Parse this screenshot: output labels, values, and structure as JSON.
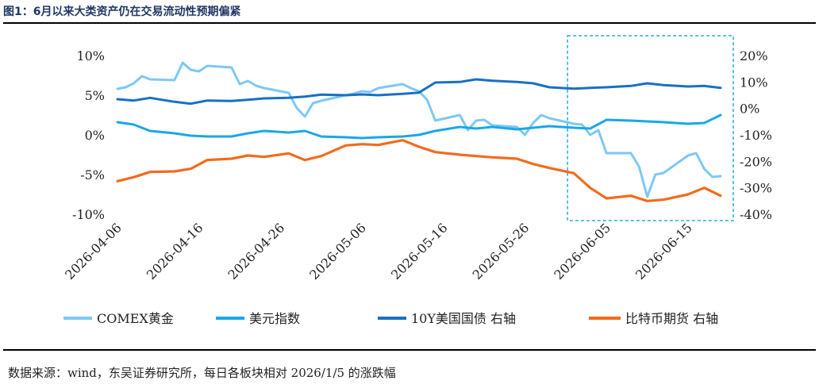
{
  "figure_title": "图1：6月以来大类资产仍在交易流动性预期偏紧",
  "source_note": "数据来源：wind，东吴证券研究所，每日各板块相对 2026/1/5 的涨跌幅",
  "colors": {
    "gold": "#7ec8f5",
    "usd": "#1aa7e8",
    "us10y": "#1a6fc4",
    "btc": "#f26b1d",
    "highlight_box": "#29a8e0"
  },
  "chart_data": {
    "type": "line",
    "x_tick_labels": [
      "2026-04-06",
      "2026-04-16",
      "2026-04-26",
      "2026-05-06",
      "2026-05-16",
      "2026-05-26",
      "2026-06-05",
      "2026-06-15"
    ],
    "x_range": [
      "2026-04-06",
      "2026-06-19"
    ],
    "left_axis": {
      "ticks": [
        "10%",
        "5%",
        "0%",
        "-5%",
        "-10%"
      ],
      "ylim": [
        -10,
        10
      ]
    },
    "right_axis": {
      "ticks": [
        "20%",
        "10%",
        "0%",
        "-10%",
        "-20%",
        "-30%",
        "-40%"
      ],
      "ylim": [
        -40,
        20
      ]
    },
    "highlight_range": [
      "2026-06-01",
      "2026-06-19"
    ],
    "grid": false,
    "legend_position": "bottom",
    "series": [
      {
        "name": "COMEX黄金",
        "axis": "left",
        "color": "gold",
        "x": [
          "2026-04-06",
          "2026-04-07",
          "2026-04-08",
          "2026-04-09",
          "2026-04-10",
          "2026-04-13",
          "2026-04-14",
          "2026-04-15",
          "2026-04-16",
          "2026-04-17",
          "2026-04-20",
          "2026-04-21",
          "2026-04-22",
          "2026-04-23",
          "2026-04-24",
          "2026-04-27",
          "2026-04-28",
          "2026-04-29",
          "2026-04-30",
          "2026-05-01",
          "2026-05-04",
          "2026-05-05",
          "2026-05-06",
          "2026-05-07",
          "2026-05-08",
          "2026-05-11",
          "2026-05-12",
          "2026-05-13",
          "2026-05-14",
          "2026-05-15",
          "2026-05-18",
          "2026-05-19",
          "2026-05-20",
          "2026-05-21",
          "2026-05-22",
          "2026-05-25",
          "2026-05-26",
          "2026-05-27",
          "2026-05-28",
          "2026-05-29",
          "2026-06-01",
          "2026-06-02",
          "2026-06-03",
          "2026-06-04",
          "2026-06-05",
          "2026-06-08",
          "2026-06-09",
          "2026-06-10",
          "2026-06-11",
          "2026-06-12",
          "2026-06-15",
          "2026-06-16",
          "2026-06-17",
          "2026-06-18",
          "2026-06-19"
        ],
        "y": [
          5.8,
          6.0,
          6.5,
          7.4,
          7.0,
          6.9,
          9.1,
          8.2,
          8.0,
          8.7,
          8.5,
          6.4,
          6.8,
          6.2,
          5.9,
          5.3,
          3.4,
          2.3,
          4.0,
          4.3,
          5.0,
          5.2,
          5.5,
          5.4,
          5.9,
          6.4,
          5.9,
          5.5,
          4.4,
          1.8,
          2.5,
          0.6,
          1.8,
          1.9,
          1.2,
          1.0,
          0.0,
          1.5,
          2.5,
          2.1,
          1.4,
          1.3,
          0.0,
          0.6,
          -2.3,
          -2.3,
          -4.0,
          -7.8,
          -5.0,
          -4.8,
          -2.6,
          -2.3,
          -4.3,
          -5.3,
          -5.2
        ]
      },
      {
        "name": "美元指数",
        "axis": "left",
        "color": "usd",
        "x": [
          "2026-04-06",
          "2026-04-08",
          "2026-04-10",
          "2026-04-13",
          "2026-04-15",
          "2026-04-17",
          "2026-04-20",
          "2026-04-22",
          "2026-04-24",
          "2026-04-27",
          "2026-04-29",
          "2026-05-01",
          "2026-05-04",
          "2026-05-06",
          "2026-05-08",
          "2026-05-11",
          "2026-05-13",
          "2026-05-15",
          "2026-05-18",
          "2026-05-20",
          "2026-05-22",
          "2026-05-25",
          "2026-05-27",
          "2026-05-29",
          "2026-06-01",
          "2026-06-03",
          "2026-06-05",
          "2026-06-08",
          "2026-06-10",
          "2026-06-12",
          "2026-06-15",
          "2026-06-17",
          "2026-06-19"
        ],
        "y": [
          1.6,
          1.3,
          0.5,
          0.2,
          -0.1,
          -0.2,
          -0.2,
          0.2,
          0.5,
          0.3,
          0.5,
          -0.2,
          -0.3,
          -0.4,
          -0.3,
          -0.2,
          0.0,
          0.5,
          1.0,
          0.8,
          1.0,
          0.7,
          0.9,
          1.1,
          0.9,
          0.8,
          1.9,
          1.8,
          1.7,
          1.6,
          1.4,
          1.5,
          2.5
        ]
      },
      {
        "name": "10Y美国国债  右轴",
        "axis": "right",
        "color": "us10y",
        "x": [
          "2026-04-06",
          "2026-04-08",
          "2026-04-10",
          "2026-04-13",
          "2026-04-15",
          "2026-04-17",
          "2026-04-20",
          "2026-04-22",
          "2026-04-24",
          "2026-04-27",
          "2026-04-29",
          "2026-05-01",
          "2026-05-04",
          "2026-05-06",
          "2026-05-08",
          "2026-05-11",
          "2026-05-13",
          "2026-05-15",
          "2026-05-18",
          "2026-05-20",
          "2026-05-22",
          "2026-05-25",
          "2026-05-27",
          "2026-05-29",
          "2026-06-01",
          "2026-06-03",
          "2026-06-05",
          "2026-06-08",
          "2026-06-10",
          "2026-06-12",
          "2026-06-15",
          "2026-06-17",
          "2026-06-19"
        ],
        "y": [
          3.5,
          3.0,
          4.0,
          2.5,
          1.8,
          3.0,
          2.8,
          3.3,
          3.8,
          4.0,
          4.5,
          5.2,
          5.0,
          5.3,
          5.0,
          5.5,
          6.0,
          9.8,
          10.0,
          11.0,
          10.5,
          10.0,
          9.5,
          8.0,
          7.5,
          7.8,
          8.0,
          8.5,
          9.5,
          8.8,
          8.3,
          8.5,
          7.8
        ]
      },
      {
        "name": "比特币期货  右轴",
        "axis": "right",
        "color": "btc",
        "x": [
          "2026-04-06",
          "2026-04-08",
          "2026-04-10",
          "2026-04-13",
          "2026-04-15",
          "2026-04-17",
          "2026-04-20",
          "2026-04-22",
          "2026-04-24",
          "2026-04-27",
          "2026-04-29",
          "2026-05-01",
          "2026-05-04",
          "2026-05-06",
          "2026-05-08",
          "2026-05-11",
          "2026-05-13",
          "2026-05-15",
          "2026-05-18",
          "2026-05-20",
          "2026-05-22",
          "2026-05-25",
          "2026-05-27",
          "2026-05-29",
          "2026-06-01",
          "2026-06-03",
          "2026-06-05",
          "2026-06-08",
          "2026-06-10",
          "2026-06-12",
          "2026-06-15",
          "2026-06-17",
          "2026-06-19"
        ],
        "y": [
          -27.5,
          -26.0,
          -24.0,
          -23.8,
          -22.8,
          -19.5,
          -19.0,
          -17.8,
          -18.3,
          -17.0,
          -19.5,
          -18.0,
          -14.0,
          -13.5,
          -13.8,
          -12.0,
          -14.5,
          -16.5,
          -17.5,
          -18.0,
          -18.5,
          -19.0,
          -21.0,
          -22.5,
          -24.5,
          -30.0,
          -34.0,
          -33.0,
          -35.0,
          -34.5,
          -32.5,
          -30.0,
          -33.0
        ]
      }
    ]
  }
}
